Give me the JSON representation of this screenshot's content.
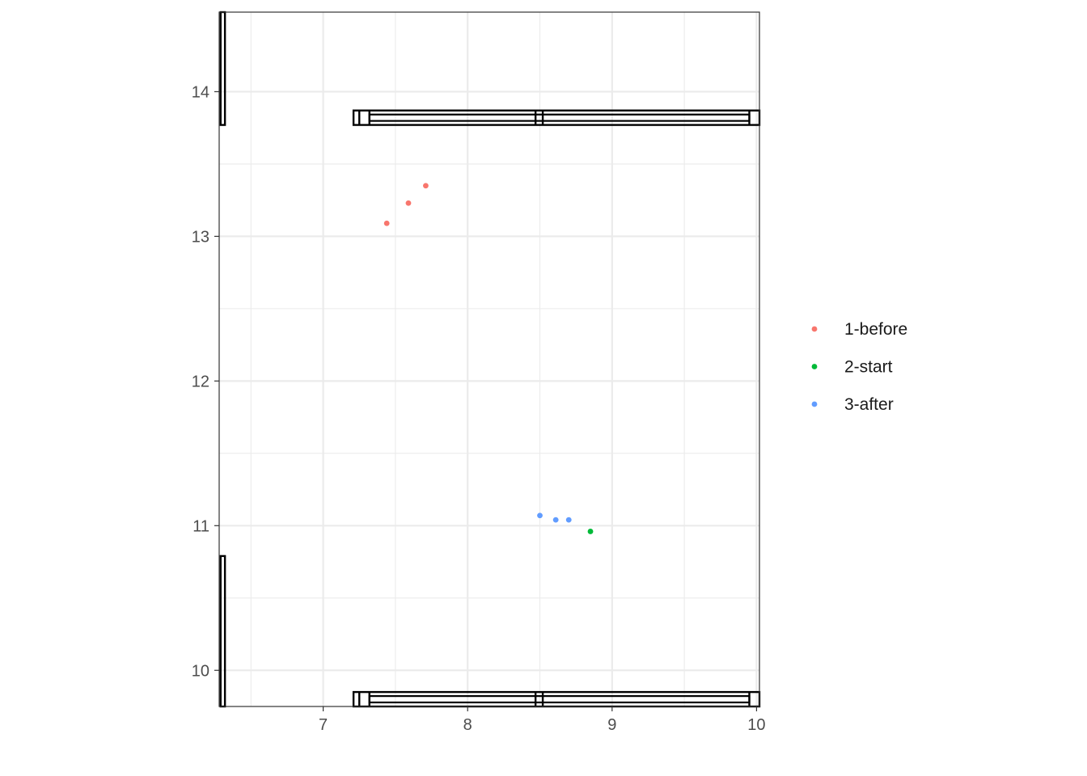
{
  "chart_data": {
    "type": "scatter",
    "title": "",
    "xlabel": "",
    "ylabel": "",
    "xlim": [
      6.28,
      10.02
    ],
    "ylim": [
      9.75,
      14.55
    ],
    "x_ticks": [
      7,
      8,
      9,
      10
    ],
    "y_ticks": [
      10,
      11,
      12,
      13,
      14
    ],
    "x_tick_labels": [
      "7",
      "8",
      "9",
      "10"
    ],
    "y_tick_labels": [
      "10",
      "11",
      "12",
      "13",
      "14"
    ],
    "grid": true,
    "legend_position": "right",
    "series": [
      {
        "name": "1-before",
        "color": "#F8766D",
        "points": [
          [
            7.44,
            13.09
          ],
          [
            7.59,
            13.23
          ],
          [
            7.71,
            13.35
          ]
        ]
      },
      {
        "name": "2-start",
        "color": "#00BA38",
        "points": [
          [
            8.85,
            10.96
          ]
        ]
      },
      {
        "name": "3-after",
        "color": "#619CFF",
        "points": [
          [
            8.5,
            11.07
          ],
          [
            8.61,
            11.04
          ],
          [
            8.7,
            11.04
          ]
        ]
      }
    ],
    "frame_outlines": [
      {
        "kind": "vertical",
        "x": [
          6.29,
          6.32
        ],
        "y": [
          13.77,
          14.55
        ]
      },
      {
        "kind": "vertical",
        "x": [
          6.29,
          6.32
        ],
        "y": [
          9.75,
          10.79
        ]
      },
      {
        "kind": "horizontal",
        "x": [
          7.21,
          10.02
        ],
        "y": [
          13.77,
          13.87
        ],
        "dividers": [
          7.25,
          7.32,
          8.47,
          8.52,
          9.95
        ]
      },
      {
        "kind": "horizontal",
        "x": [
          7.21,
          10.02
        ],
        "y": [
          9.75,
          9.85
        ],
        "dividers": [
          7.25,
          7.32,
          8.47,
          8.52,
          9.95
        ]
      }
    ]
  }
}
